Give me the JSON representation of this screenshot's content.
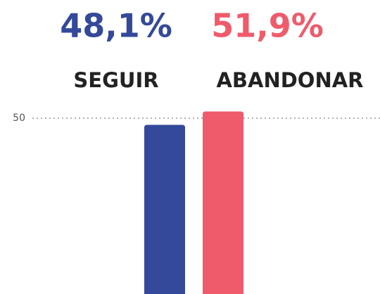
{
  "chart_data": {
    "type": "bar",
    "categories": [
      "SEGUIR",
      "ABANDONAR"
    ],
    "values": [
      48.1,
      51.9
    ],
    "value_labels": [
      "48,1%",
      "51,9%"
    ],
    "colors": [
      "#34499a",
      "#ef5b6b"
    ],
    "ylim": [
      0,
      52
    ],
    "yticks": [
      50
    ],
    "grid": true
  }
}
